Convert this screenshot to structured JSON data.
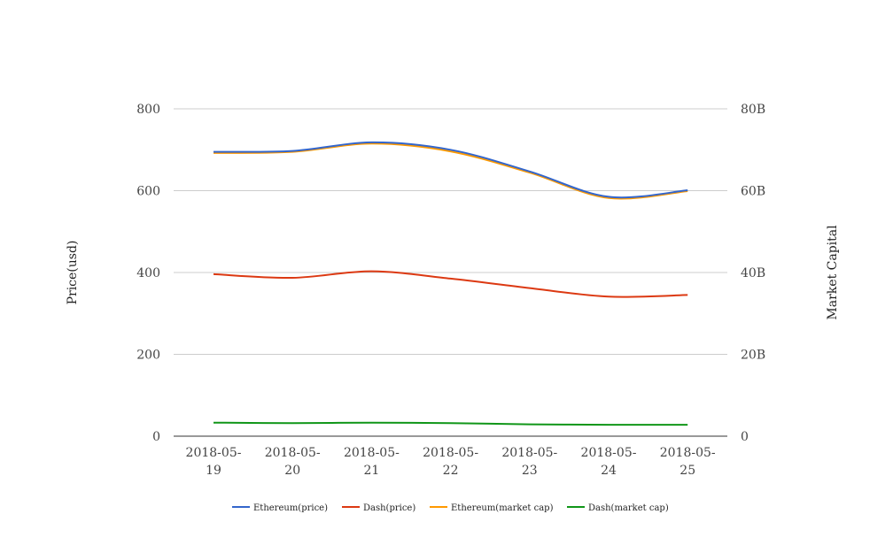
{
  "chart_data": {
    "type": "line",
    "categories": [
      "2018-05-19",
      "2018-05-20",
      "2018-05-21",
      "2018-05-22",
      "2018-05-23",
      "2018-05-24",
      "2018-05-25"
    ],
    "category_labels": [
      [
        "2018-05-",
        "19"
      ],
      [
        "2018-05-",
        "20"
      ],
      [
        "2018-05-",
        "21"
      ],
      [
        "2018-05-",
        "22"
      ],
      [
        "2018-05-",
        "23"
      ],
      [
        "2018-05-",
        "24"
      ],
      [
        "2018-05-",
        "25"
      ]
    ],
    "y_left": {
      "label": "Price(usd)",
      "range": [
        0,
        800
      ],
      "ticks": [
        "0",
        "200",
        "400",
        "600",
        "800"
      ]
    },
    "y_right": {
      "label": "Market Capital",
      "range": [
        0,
        80000000000
      ],
      "ticks": [
        "0",
        "20B",
        "40B",
        "60B",
        "80B"
      ]
    },
    "grid": true,
    "legend_position": "bottom",
    "series": [
      {
        "name": "Ethereum(price)",
        "axis": "left",
        "color": "#3366cc",
        "values": [
          695,
          697,
          718,
          700,
          647,
          585,
          601
        ]
      },
      {
        "name": "Dash(price)",
        "axis": "left",
        "color": "#dc3912",
        "values": [
          396,
          387,
          403,
          385,
          362,
          341,
          345
        ]
      },
      {
        "name": "Ethereum(market cap)",
        "axis": "right",
        "color": "#ff9900",
        "values": [
          69200000000,
          69500000000,
          71500000000,
          69600000000,
          64400000000,
          58200000000,
          59900000000
        ]
      },
      {
        "name": "Dash(market cap)",
        "axis": "right",
        "color": "#109618",
        "values": [
          3300000000,
          3200000000,
          3300000000,
          3200000000,
          2900000000,
          2800000000,
          2800000000
        ]
      }
    ]
  }
}
